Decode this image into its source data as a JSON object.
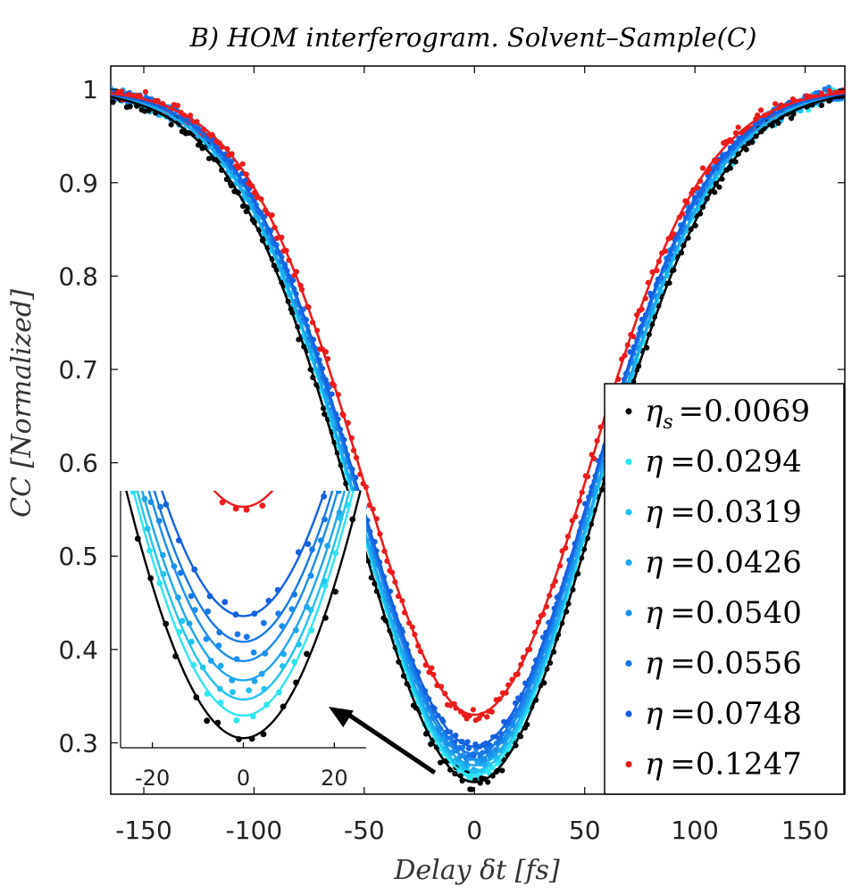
{
  "chart_data": {
    "type": "scatter",
    "title": "B) HOM interferogram. Solvent–Sample(C)",
    "xlabel": "Delay δt [fs]",
    "ylabel": "CC [Normalized]",
    "xlim": [
      -165,
      168
    ],
    "ylim": [
      0.245,
      1.025
    ],
    "xticks": [
      -150,
      -100,
      -50,
      0,
      50,
      100,
      150
    ],
    "xtick_labels": [
      "-150",
      "-100",
      "-50",
      "0",
      "50",
      "100",
      "150"
    ],
    "yticks": [
      0.3,
      0.4,
      0.5,
      0.6,
      0.7,
      0.8,
      0.9,
      1.0
    ],
    "ytick_labels": [
      "0.3",
      "0.4",
      "0.5",
      "0.6",
      "0.7",
      "0.8",
      "0.9",
      "1"
    ],
    "grid": false,
    "legend_position": "right",
    "series": [
      {
        "symbol": "η",
        "sub": "s",
        "name": "ηs =0.0069",
        "value_label": "=0.0069",
        "color": "#000000",
        "dip_min": 0.258,
        "width": 55
      },
      {
        "symbol": "η",
        "sub": "",
        "name": "η =0.0294",
        "value_label": "=0.0294",
        "color": "#2ee6f2",
        "dip_min": 0.265,
        "width": 54
      },
      {
        "symbol": "η",
        "sub": "",
        "name": "η =0.0319",
        "value_label": "=0.0319",
        "color": "#21c4f0",
        "dip_min": 0.27,
        "width": 54
      },
      {
        "symbol": "η",
        "sub": "",
        "name": "η =0.0426",
        "value_label": "=0.0426",
        "color": "#1ea6ee",
        "dip_min": 0.276,
        "width": 54
      },
      {
        "symbol": "η",
        "sub": "",
        "name": "η =0.0540",
        "value_label": "=0.0540",
        "color": "#1b8ded",
        "dip_min": 0.282,
        "width": 53
      },
      {
        "symbol": "η",
        "sub": "",
        "name": "η =0.0556",
        "value_label": "=0.0556",
        "color": "#1878e8",
        "dip_min": 0.288,
        "width": 53
      },
      {
        "symbol": "η",
        "sub": "",
        "name": "η =0.0748",
        "value_label": "=0.0748",
        "color": "#1560e0",
        "dip_min": 0.296,
        "width": 53
      },
      {
        "symbol": "η",
        "sub": "",
        "name": "η =0.1247",
        "value_label": "=0.1247",
        "color": "#ec1c1c",
        "dip_min": 0.33,
        "width": 52
      }
    ],
    "inset": {
      "description": "zoom of the dip minimum",
      "xlim": [
        -27,
        27
      ],
      "xticks": [
        -20,
        0,
        20
      ],
      "xtick_labels": [
        "-20",
        "0",
        "20"
      ],
      "ylim": [
        0.255,
        0.335
      ]
    },
    "annotations": [
      {
        "type": "arrow",
        "from_data": [
          -18,
          0.268
        ],
        "to": "inset",
        "label": ""
      }
    ]
  }
}
